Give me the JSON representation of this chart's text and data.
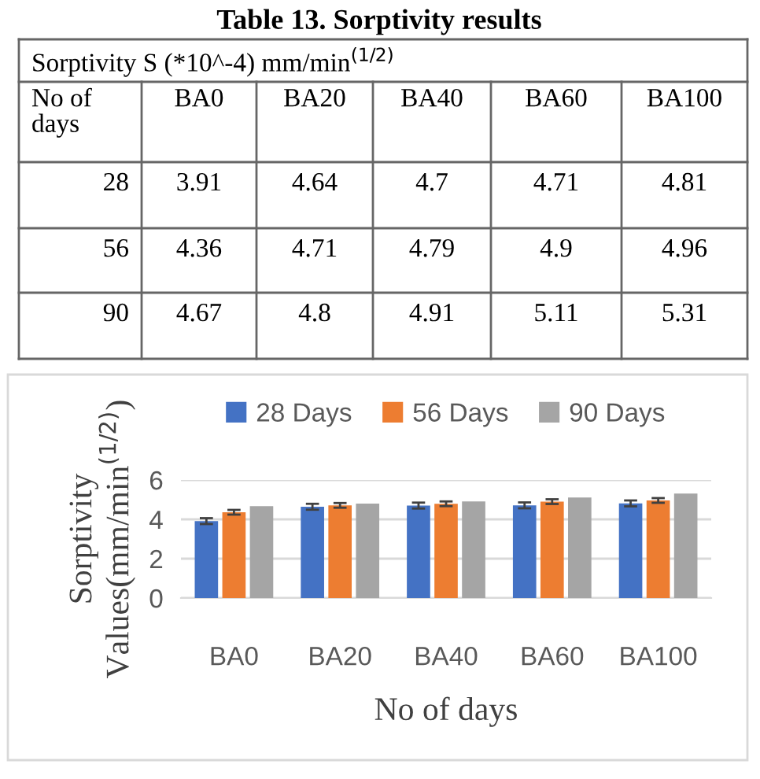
{
  "chart_data": {
    "type": "bar",
    "title": "Table 13. Sorptivity results",
    "xlabel": "No of days",
    "ylabel": "Sorptivity\nValues(mm/min$^{(1/2)}$)",
    "categories": [
      "BA0",
      "BA20",
      "BA40",
      "BA60",
      "BA100"
    ],
    "series": [
      {
        "name": "28 Days",
        "color": "#4472c4",
        "values": [
          3.91,
          4.64,
          4.7,
          4.71,
          4.81
        ],
        "errors": [
          0.15,
          0.15,
          0.15,
          0.15,
          0.15
        ]
      },
      {
        "name": "56 Days",
        "color": "#ed7d31",
        "values": [
          4.36,
          4.71,
          4.79,
          4.9,
          4.96
        ],
        "errors": [
          0.12,
          0.12,
          0.12,
          0.12,
          0.12
        ]
      },
      {
        "name": "90 Days",
        "color": "#a5a5a5",
        "values": [
          4.67,
          4.8,
          4.91,
          5.11,
          5.31
        ]
      }
    ],
    "ylim": [
      0,
      6
    ],
    "yticks": [
      0,
      2,
      4,
      6
    ],
    "grid": "y",
    "legend": "top",
    "data_labels": true,
    "annotations": [
      "Sorptivity S (*10^-4) mm/min$^{(1/2)}$",
      "No of\ndays",
      "28",
      "56",
      "90"
    ]
  }
}
